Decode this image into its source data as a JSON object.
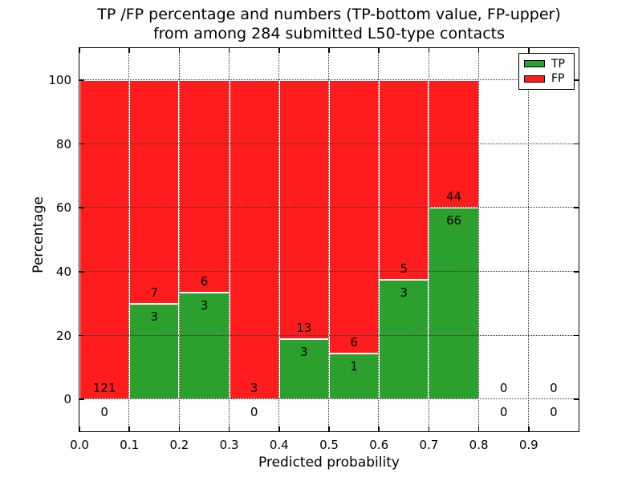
{
  "title": {
    "line1": "TP /FP percentage and numbers (TP-bottom value, FP-upper)",
    "line2": "from among 284 submitted L50-type contacts"
  },
  "axes": {
    "xlabel": "Predicted probability",
    "ylabel": "Percentage"
  },
  "legend": {
    "items": [
      {
        "label": "TP",
        "color": "#2ca02c"
      },
      {
        "label": "FP",
        "color": "#ff1c1c"
      }
    ]
  },
  "chart_data": {
    "type": "bar",
    "stacked": true,
    "title": "TP /FP percentage and numbers (TP-bottom value, FP-upper) from among 284 submitted L50-type contacts",
    "xlabel": "Predicted probability",
    "ylabel": "Percentage",
    "xlim": [
      0.0,
      1.0
    ],
    "ylim": [
      -10,
      110
    ],
    "xticks": [
      "0.0",
      "0.1",
      "0.2",
      "0.3",
      "0.4",
      "0.5",
      "0.6",
      "0.7",
      "0.8",
      "0.9"
    ],
    "yticks": [
      "0",
      "20",
      "40",
      "60",
      "80",
      "100"
    ],
    "grid": true,
    "legend_position": "upper right",
    "bin_width": 0.1,
    "series": [
      {
        "name": "TP",
        "color": "#2ca02c",
        "values": [
          0,
          3,
          3,
          0,
          3,
          1,
          3,
          66,
          0,
          0
        ]
      },
      {
        "name": "FP",
        "color": "#ff1c1c",
        "values": [
          121,
          7,
          6,
          3,
          13,
          6,
          5,
          44,
          0,
          0
        ]
      }
    ],
    "bins": [
      {
        "x": 0.0,
        "tp": 0,
        "fp": 121,
        "tp_percent": 0,
        "has_bar": true
      },
      {
        "x": 0.1,
        "tp": 3,
        "fp": 7,
        "tp_percent": 30,
        "has_bar": true
      },
      {
        "x": 0.2,
        "tp": 3,
        "fp": 6,
        "tp_percent": 33.33,
        "has_bar": true
      },
      {
        "x": 0.3,
        "tp": 0,
        "fp": 3,
        "tp_percent": 0,
        "has_bar": true
      },
      {
        "x": 0.4,
        "tp": 3,
        "fp": 13,
        "tp_percent": 18.75,
        "has_bar": true
      },
      {
        "x": 0.5,
        "tp": 1,
        "fp": 6,
        "tp_percent": 14.29,
        "has_bar": true
      },
      {
        "x": 0.6,
        "tp": 3,
        "fp": 5,
        "tp_percent": 37.5,
        "has_bar": true
      },
      {
        "x": 0.7,
        "tp": 66,
        "fp": 44,
        "tp_percent": 60,
        "has_bar": true
      },
      {
        "x": 0.8,
        "tp": 0,
        "fp": 0,
        "tp_percent": 0,
        "has_bar": false
      },
      {
        "x": 0.9,
        "tp": 0,
        "fp": 0,
        "tp_percent": 0,
        "has_bar": false
      }
    ]
  }
}
